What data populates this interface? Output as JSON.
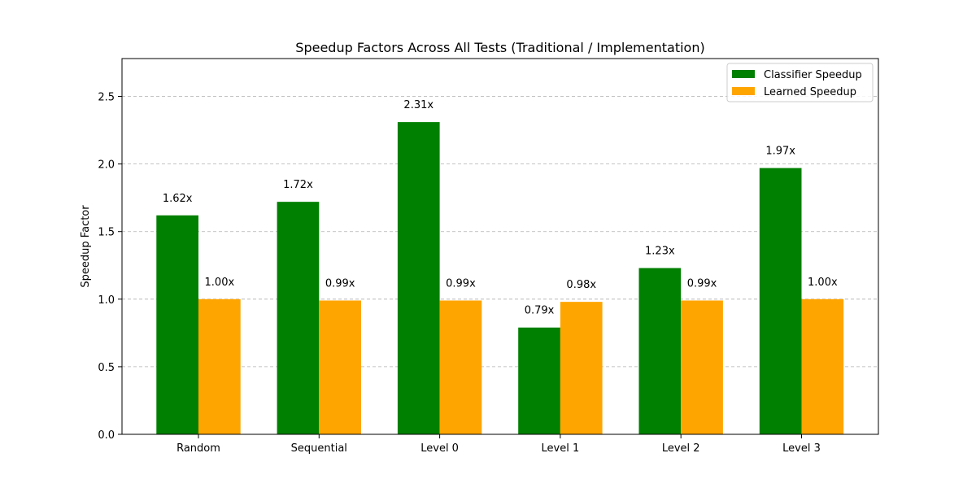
{
  "chart_data": {
    "type": "bar",
    "title": "Speedup Factors Across All Tests (Traditional / Implementation)",
    "xlabel": "",
    "ylabel": "Speedup Factor",
    "categories": [
      "Random",
      "Sequential",
      "Level 0",
      "Level 1",
      "Level 2",
      "Level 3"
    ],
    "series": [
      {
        "name": "Classifier Speedup",
        "color": "#008000",
        "values": [
          1.62,
          1.72,
          2.31,
          0.79,
          1.23,
          1.97
        ],
        "labels": [
          "1.62x",
          "1.72x",
          "2.31x",
          "0.79x",
          "1.23x",
          "1.97x"
        ]
      },
      {
        "name": "Learned Speedup",
        "color": "#FFA500",
        "values": [
          1.0,
          0.99,
          0.99,
          0.98,
          0.99,
          1.0
        ],
        "labels": [
          "1.00x",
          "0.99x",
          "0.99x",
          "0.98x",
          "0.99x",
          "1.00x"
        ]
      }
    ],
    "ylim": [
      0,
      2.78
    ],
    "yticks": [
      0.0,
      0.5,
      1.0,
      1.5,
      2.0,
      2.5
    ],
    "ytick_labels": [
      "0.0",
      "0.5",
      "1.0",
      "1.5",
      "2.0",
      "2.5"
    ],
    "grid": "y-dashed",
    "legend_position": "top-right"
  }
}
